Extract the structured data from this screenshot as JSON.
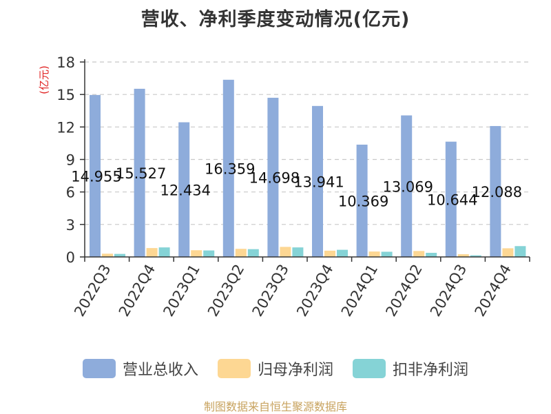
{
  "chart_data": {
    "type": "bar",
    "title": "营收、净利季度变动情况(亿元)",
    "ylabel": "(亿元)",
    "xlabel": "",
    "ylim": [
      0,
      18
    ],
    "yticks": [
      0,
      3,
      6,
      9,
      12,
      15,
      18
    ],
    "grid": true,
    "legend_position": "bottom",
    "categories": [
      "2022Q3",
      "2022Q4",
      "2023Q1",
      "2023Q2",
      "2023Q3",
      "2023Q4",
      "2024Q1",
      "2024Q2",
      "2024Q3",
      "2024Q4"
    ],
    "series": [
      {
        "name": "营业总收入",
        "color": "#8eacdb",
        "values": [
          14.955,
          15.527,
          12.434,
          16.359,
          14.698,
          13.941,
          10.369,
          13.069,
          10.644,
          12.088
        ],
        "labels": [
          "14.955",
          "15.527",
          "12.434",
          "16.359",
          "14.698",
          "13.941",
          "10.369",
          "13.069",
          "10.644",
          "12.088"
        ]
      },
      {
        "name": "归母净利润",
        "color": "#fdd793",
        "values": [
          0.3,
          0.82,
          0.62,
          0.75,
          0.93,
          0.58,
          0.5,
          0.55,
          0.25,
          0.8
        ]
      },
      {
        "name": "扣非净利润",
        "color": "#85d3d6",
        "values": [
          0.28,
          0.88,
          0.6,
          0.72,
          0.88,
          0.66,
          0.48,
          0.38,
          0.15,
          1.0
        ]
      }
    ]
  },
  "source": "制图数据来自恒生聚源数据库"
}
